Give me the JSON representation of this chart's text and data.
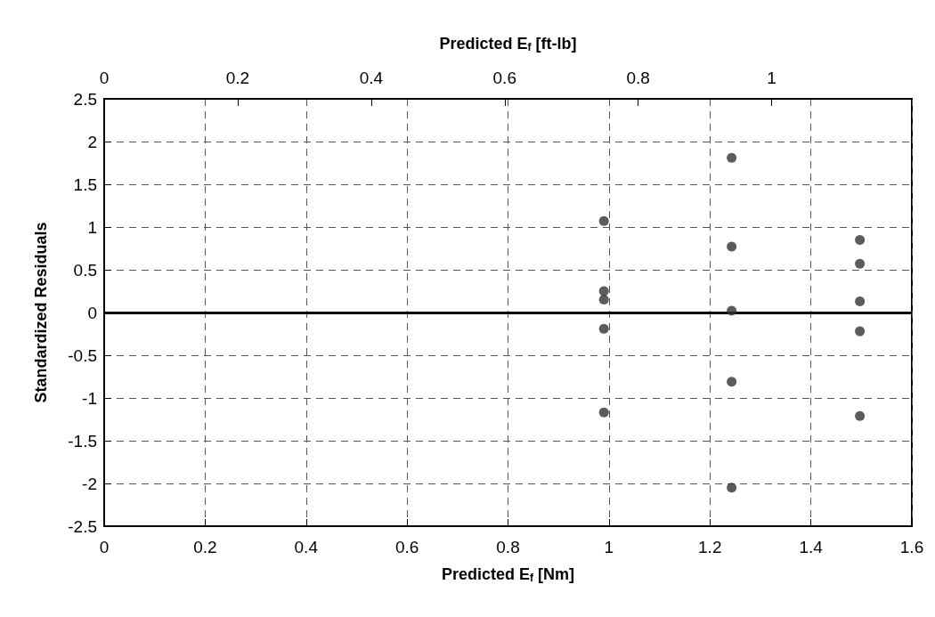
{
  "chart_data": {
    "type": "scatter",
    "xlabel": "Predicted E$_{f}$ [Nm]",
    "x2label": "Predicted E$_{f}$ [ft-lb]",
    "ylabel": "Standardized Residuals",
    "x": [
      0.99,
      0.99,
      0.99,
      0.99,
      0.99,
      1.243,
      1.243,
      1.243,
      1.243,
      1.243,
      1.497,
      1.497,
      1.497,
      1.497,
      1.497
    ],
    "series": [
      {
        "color": "#333333",
        "values": [
          1.07,
          0.25,
          0.15,
          -0.19,
          -1.17,
          1.81,
          0.77,
          0.02,
          -0.81,
          -2.05,
          0.85,
          0.57,
          0.13,
          -0.22,
          -1.21
        ]
      }
    ],
    "xlim": [
      0,
      1.6
    ],
    "xticks": [
      0,
      0.2,
      0.4,
      0.6,
      0.8,
      1,
      1.2,
      1.4,
      1.6
    ],
    "x2lim": [
      0,
      1.21
    ],
    "x2ticks": [
      0,
      0.2,
      0.4,
      0.6,
      0.8,
      1
    ],
    "ylim": [
      -2.5,
      2.5
    ],
    "yticks": [
      -2.5,
      -2,
      -1.5,
      -1,
      -0.5,
      0,
      0.5,
      1,
      1.5,
      2,
      2.5
    ],
    "ref_lines": [
      {
        "axis": "y",
        "value": 0,
        "color": "#000000",
        "line_style": "solid"
      }
    ],
    "grid": true,
    "marker": "circle"
  }
}
